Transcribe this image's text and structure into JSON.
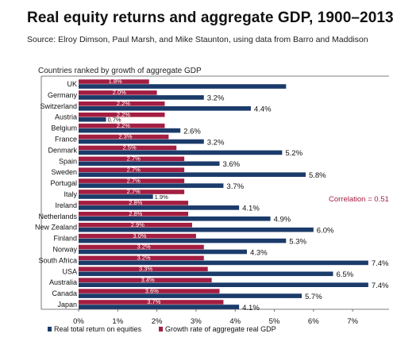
{
  "title": "Real equity returns and aggregate GDP, 1900–2013",
  "source": "Source: Elroy Dimson, Paul Marsh, and Mike Staunton, using data from Barro and Maddison",
  "correlation_label": "Correlation =",
  "correlation_value": "0.51",
  "colors": {
    "returns": "#1b3b6a",
    "gdp": "#a31e42",
    "corr": "#a31e42"
  },
  "chart_data": {
    "type": "bar",
    "orientation": "horizontal",
    "subtitle": "Countries ranked by growth of aggregate GDP",
    "categories": [
      "UK",
      "Germany",
      "Switzerland",
      "Austria",
      "Belgium",
      "France",
      "Denmark",
      "Spain",
      "Sweden",
      "Portugal",
      "Italy",
      "Ireland",
      "Netherlands",
      "New Zealand",
      "Finland",
      "Norway",
      "South Africa",
      "USA",
      "Australia",
      "Canada",
      "Japan"
    ],
    "series": [
      {
        "name": "Real total return on equities",
        "values": [
          5.3,
          3.2,
          4.4,
          0.7,
          2.6,
          3.2,
          5.2,
          3.6,
          5.8,
          3.7,
          1.9,
          4.1,
          4.9,
          6.0,
          5.3,
          4.3,
          7.4,
          6.5,
          7.4,
          5.7,
          4.1
        ],
        "labels": [
          "",
          "3.2%",
          "4.4%",
          "0.7%",
          "2.6%",
          "3.2%",
          "5.2%",
          "3.6%",
          "5.8%",
          "3.7%",
          "1.9%",
          "4.1%",
          "4.9%",
          "6.0%",
          "5.3%",
          "4.3%",
          "7.4%",
          "6.5%",
          "7.4%",
          "5.7%",
          "4.1%"
        ]
      },
      {
        "name": "Growth rate of aggregate real GDP",
        "values": [
          1.8,
          2.0,
          2.2,
          2.2,
          2.2,
          2.3,
          2.5,
          2.7,
          2.7,
          2.7,
          2.7,
          2.8,
          2.8,
          2.9,
          3.0,
          3.2,
          3.2,
          3.3,
          3.4,
          3.6,
          3.7
        ],
        "labels": [
          "1.8%",
          "2.0%",
          "2.2%",
          "2.2%",
          "2.2%",
          "2.3%",
          "2.5%",
          "2.7%",
          "2.7%",
          "2.7%",
          "2.7%",
          "2.8%",
          "2.8%",
          "2.9%",
          "3.0%",
          "3.2%",
          "3.2%",
          "3.3%",
          "3.4%",
          "3.6%",
          "3.7%"
        ]
      }
    ],
    "x_ticks": [
      "0%",
      "1%",
      "2%",
      "3%",
      "4%",
      "5%",
      "6%",
      "7%"
    ],
    "xlim": [
      0,
      7.6
    ],
    "legend": [
      "Real total return on equities",
      "Growth rate of aggregate real GDP"
    ],
    "legend_position": "bottom"
  }
}
